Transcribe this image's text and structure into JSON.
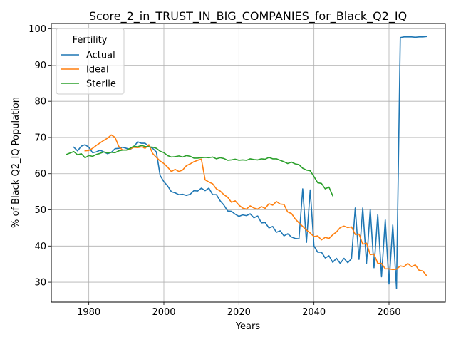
{
  "chart_data": {
    "type": "line",
    "title": "Score_2_in_TRUST_IN_BIG_COMPANIES_for_Black_Q2_IQ",
    "xlabel": "Years",
    "ylabel": "% of Black Q2_IQ Population",
    "xlim": [
      1970,
      2075
    ],
    "ylim": [
      24.5,
      101.5
    ],
    "xticks": [
      1980,
      2000,
      2020,
      2040,
      2060
    ],
    "yticks": [
      30,
      40,
      50,
      60,
      70,
      80,
      90,
      100
    ],
    "grid": true,
    "legend": {
      "title": "Fertility",
      "placement": "top-left"
    },
    "series": [
      {
        "name": "Actual",
        "color": "#1f77b4",
        "x": [
          1976,
          1977,
          1978,
          1979,
          1980,
          1981,
          1982,
          1983,
          1984,
          1985,
          1986,
          1987,
          1988,
          1989,
          1990,
          1991,
          1992,
          1993,
          1994,
          1995,
          1996,
          1997,
          1998,
          1999,
          2000,
          2001,
          2002,
          2003,
          2004,
          2005,
          2006,
          2007,
          2008,
          2009,
          2010,
          2011,
          2012,
          2013,
          2014,
          2015,
          2016,
          2017,
          2018,
          2019,
          2020,
          2021,
          2022,
          2023,
          2024,
          2025,
          2026,
          2027,
          2028,
          2029,
          2030,
          2031,
          2032,
          2033,
          2034,
          2035,
          2036,
          2037,
          2038,
          2039,
          2040,
          2041,
          2042,
          2043,
          2044,
          2045,
          2046,
          2047,
          2048,
          2049,
          2050,
          2051,
          2052,
          2053,
          2054,
          2055,
          2056,
          2057,
          2058,
          2059,
          2060,
          2061,
          2062,
          2063,
          2064,
          2065,
          2066,
          2067,
          2068,
          2069,
          2070
        ],
        "y": [
          67.3,
          66.3,
          67.6,
          68.0,
          67.3,
          65.8,
          66.0,
          66.5,
          66.0,
          65.5,
          65.9,
          66.9,
          67.0,
          67.3,
          67.0,
          66.7,
          67.4,
          68.8,
          68.4,
          68.4,
          67.5,
          67.0,
          66.0,
          59.5,
          57.8,
          56.6,
          55.0,
          54.7,
          54.2,
          54.3,
          54.0,
          54.3,
          55.3,
          55.2,
          56.0,
          55.3,
          56.0,
          54.2,
          54.2,
          52.5,
          51.3,
          49.7,
          49.6,
          48.8,
          48.2,
          48.6,
          48.4,
          48.9,
          47.8,
          48.3,
          46.4,
          46.5,
          45.0,
          45.4,
          43.8,
          44.2,
          42.8,
          43.4,
          42.5,
          42.1,
          42.0,
          55.8,
          41.0,
          55.5,
          40.0,
          38.3,
          38.3,
          36.7,
          37.3,
          35.5,
          36.6,
          35.2,
          36.6,
          35.4,
          36.5,
          50.5,
          36.3,
          50.5,
          35.2,
          50.1,
          34.0,
          48.7,
          31.5,
          47.2,
          29.5,
          45.8,
          28.2,
          97.6,
          97.8,
          97.8,
          97.8,
          97.7,
          97.8,
          97.8,
          97.9
        ]
      },
      {
        "name": "Ideal",
        "color": "#ff7f0e",
        "x": [
          1979,
          1980,
          1981,
          1982,
          1983,
          1984,
          1985,
          1986,
          1987,
          1988,
          1989,
          1990,
          1991,
          1992,
          1993,
          1994,
          1995,
          1996,
          1997,
          1998,
          1999,
          2000,
          2001,
          2002,
          2003,
          2004,
          2005,
          2006,
          2007,
          2008,
          2009,
          2010,
          2011,
          2012,
          2013,
          2014,
          2015,
          2016,
          2017,
          2018,
          2019,
          2020,
          2021,
          2022,
          2023,
          2024,
          2025,
          2026,
          2027,
          2028,
          2029,
          2030,
          2031,
          2032,
          2033,
          2034,
          2035,
          2036,
          2037,
          2038,
          2039,
          2040,
          2041,
          2042,
          2043,
          2044,
          2045,
          2046,
          2047,
          2048,
          2049,
          2050,
          2051,
          2052,
          2053,
          2054,
          2055,
          2056,
          2057,
          2058,
          2059,
          2060,
          2061,
          2062,
          2063,
          2064,
          2065,
          2066,
          2067,
          2068,
          2069,
          2070
        ],
        "y": [
          66.3,
          66.4,
          67.0,
          67.8,
          68.5,
          69.2,
          69.8,
          70.7,
          70.0,
          67.5,
          66.5,
          66.5,
          66.8,
          67.3,
          67.2,
          67.4,
          67.0,
          68.0,
          65.6,
          64.5,
          63.5,
          62.8,
          61.8,
          60.6,
          61.2,
          60.6,
          61.0,
          62.2,
          62.7,
          63.3,
          63.7,
          64.0,
          58.3,
          57.7,
          57.2,
          55.8,
          55.2,
          54.2,
          53.5,
          52.1,
          52.5,
          51.3,
          50.5,
          50.2,
          51.1,
          50.5,
          50.2,
          50.9,
          50.4,
          51.7,
          51.3,
          52.3,
          51.6,
          51.5,
          49.4,
          49.0,
          47.5,
          46.4,
          45.4,
          44.4,
          43.6,
          42.6,
          42.8,
          41.7,
          42.4,
          42.1,
          43.1,
          43.9,
          45.1,
          45.5,
          45.1,
          45.3,
          43.2,
          43.3,
          40.5,
          40.8,
          37.6,
          37.8,
          35.2,
          35.2,
          33.7,
          33.7,
          33.5,
          33.6,
          34.5,
          34.3,
          35.2,
          34.3,
          34.8,
          33.3,
          33.1,
          31.8
        ]
      },
      {
        "name": "Sterile",
        "color": "#2ca02c",
        "x": [
          1974,
          1975,
          1976,
          1977,
          1978,
          1979,
          1980,
          1981,
          1982,
          1983,
          1984,
          1985,
          1986,
          1987,
          1988,
          1989,
          1990,
          1991,
          1992,
          1993,
          1994,
          1995,
          1996,
          1997,
          1998,
          1999,
          2000,
          2001,
          2002,
          2003,
          2004,
          2005,
          2006,
          2007,
          2008,
          2009,
          2010,
          2011,
          2012,
          2013,
          2014,
          2015,
          2016,
          2017,
          2018,
          2019,
          2020,
          2021,
          2022,
          2023,
          2024,
          2025,
          2026,
          2027,
          2028,
          2029,
          2030,
          2031,
          2032,
          2033,
          2034,
          2035,
          2036,
          2037,
          2038,
          2039,
          2040,
          2041,
          2042,
          2043,
          2044,
          2045
        ],
        "y": [
          65.3,
          65.7,
          66.1,
          65.2,
          65.5,
          64.4,
          65.0,
          64.8,
          65.3,
          65.6,
          66.0,
          65.7,
          65.9,
          65.8,
          66.3,
          66.5,
          66.5,
          67.0,
          67.6,
          67.4,
          67.8,
          67.5,
          67.4,
          67.3,
          67.0,
          66.2,
          65.8,
          65.0,
          64.6,
          64.7,
          64.9,
          64.6,
          65.0,
          64.8,
          64.3,
          64.3,
          64.4,
          64.5,
          64.4,
          64.6,
          64.1,
          64.4,
          64.2,
          63.7,
          63.8,
          64.0,
          63.7,
          63.8,
          63.7,
          64.1,
          63.9,
          63.8,
          64.1,
          64.0,
          64.5,
          64.1,
          64.1,
          63.7,
          63.3,
          62.8,
          63.2,
          62.7,
          62.5,
          61.5,
          61.0,
          60.8,
          59.2,
          57.5,
          57.3,
          55.8,
          56.3,
          53.9
        ]
      }
    ]
  }
}
